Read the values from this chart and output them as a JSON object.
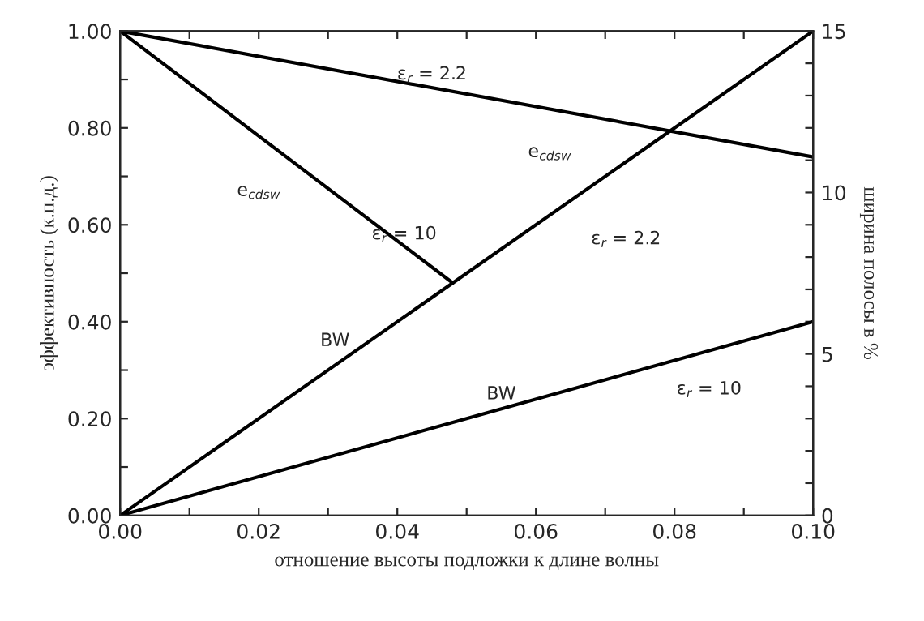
{
  "chart_data": {
    "type": "line",
    "xlabel": "отношение высоты подложки к длине волны",
    "ylabel": "эффективность (к.п.д.)",
    "y2label": "ширина полосы в %",
    "series": [
      {
        "color": "#000000",
        "x": [
          0.0,
          0.1
        ],
        "values": [
          1.0,
          0.74
        ]
      },
      {
        "color": "#000000",
        "x": [
          0.0,
          0.048
        ],
        "values": [
          1.0,
          0.48
        ]
      },
      {
        "color": "#000000",
        "x": [
          0.0,
          0.1
        ],
        "values": [
          0,
          15
        ],
        "axis": "y2"
      },
      {
        "color": "#000000",
        "x": [
          0.0,
          0.1
        ],
        "values": [
          0,
          6
        ],
        "axis": "y2"
      }
    ],
    "xlim": [
      0,
      0.1
    ],
    "xticks": [
      {
        "value": 0,
        "label": "0.00"
      },
      {
        "value": 0.01,
        "label": null
      },
      {
        "value": 0.02,
        "label": "0.02"
      },
      {
        "value": 0.03,
        "label": null
      },
      {
        "value": 0.04,
        "label": "0.04"
      },
      {
        "value": 0.05,
        "label": null
      },
      {
        "value": 0.06,
        "label": "0.06"
      },
      {
        "value": 0.07,
        "label": null
      },
      {
        "value": 0.08,
        "label": "0.08"
      },
      {
        "value": 0.09,
        "label": null
      },
      {
        "value": 0.1,
        "label": "0.10"
      }
    ],
    "ylim": [
      0,
      1.0
    ],
    "yticks": [
      {
        "value": 0,
        "label": "0.00"
      },
      {
        "value": 0.1,
        "label": null
      },
      {
        "value": 0.2,
        "label": "0.20"
      },
      {
        "value": 0.3,
        "label": null
      },
      {
        "value": 0.4,
        "label": "0.40"
      },
      {
        "value": 0.5,
        "label": null
      },
      {
        "value": 0.6,
        "label": "0.60"
      },
      {
        "value": 0.7,
        "label": null
      },
      {
        "value": 0.8,
        "label": "0.80"
      },
      {
        "value": 0.9,
        "label": null
      },
      {
        "value": 1.0,
        "label": "1.00"
      }
    ],
    "y2lim": [
      0,
      15
    ],
    "y2ticks": [
      0,
      {
        "value": 1,
        "label": null
      },
      {
        "value": 2,
        "label": null
      },
      {
        "value": 3,
        "label": null
      },
      {
        "value": 4,
        "label": null
      },
      5,
      {
        "value": 6,
        "label": null
      },
      {
        "value": 7,
        "label": null
      },
      {
        "value": 8,
        "label": null
      },
      {
        "value": 9,
        "label": null
      },
      10,
      {
        "value": 11,
        "label": null
      },
      {
        "value": 12,
        "label": null
      },
      {
        "value": 13,
        "label": null
      },
      {
        "value": 14,
        "label": null
      },
      15
    ],
    "grid": false,
    "legend": false,
    "annotations": [
      "ε$_{r}$ = 2.2",
      "e$_{cdsw}$",
      "ε$_{r}$ = 10",
      "e$_{cdsw}$",
      "ε$_{r}$ = 2.2",
      "BW",
      "BW",
      "ε$_{r}$ = 10"
    ]
  }
}
